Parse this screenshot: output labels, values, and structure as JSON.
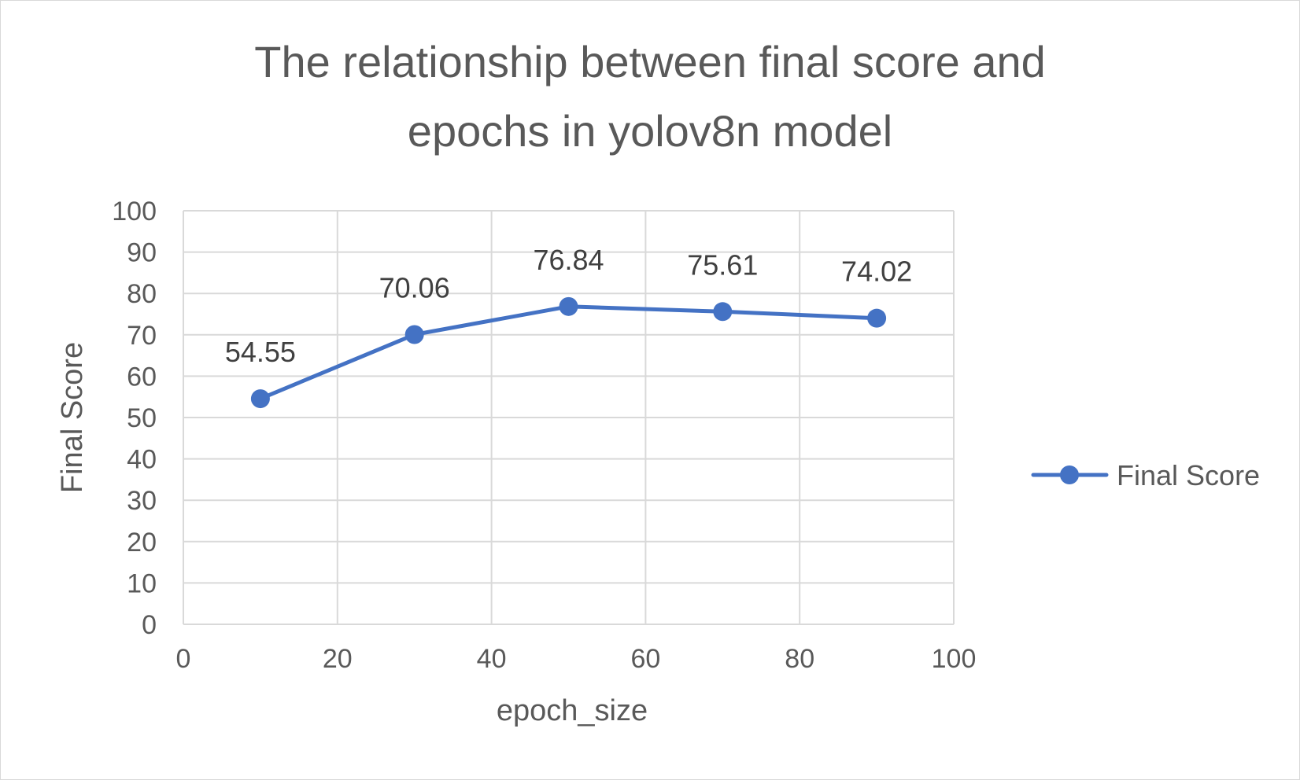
{
  "chart_data": {
    "type": "scatter",
    "title": [
      "The relationship between final score and",
      "epochs in yolov8n model"
    ],
    "xlabel": "epoch_size",
    "ylabel": "Final Score",
    "xlim": [
      0,
      100
    ],
    "ylim": [
      0,
      100
    ],
    "x_ticks": [
      "0",
      "20",
      "40",
      "60",
      "80",
      "100"
    ],
    "y_ticks": [
      "0",
      "10",
      "20",
      "30",
      "40",
      "50",
      "60",
      "70",
      "80",
      "90",
      "100"
    ],
    "grid": true,
    "lines": true,
    "markers": true,
    "legend_position": "right",
    "series": [
      {
        "name": "Final Score",
        "color": "#4472c4",
        "x": [
          10,
          30,
          50,
          70,
          90
        ],
        "y": [
          54.55,
          70.06,
          76.84,
          75.61,
          74.02
        ],
        "labels": [
          "54.55",
          "70.06",
          "76.84",
          "75.61",
          "74.02"
        ]
      }
    ]
  }
}
